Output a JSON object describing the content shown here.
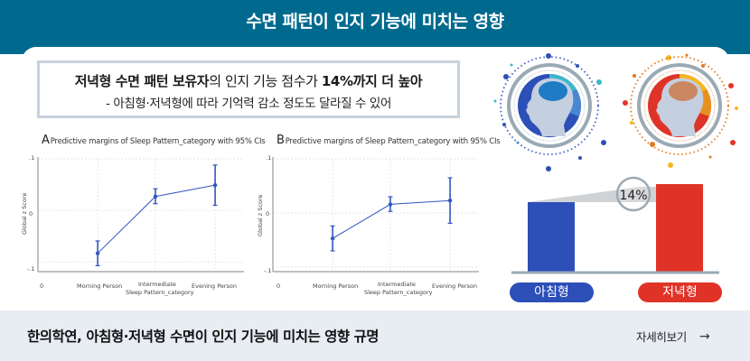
{
  "header": {
    "title": "수면 패턴이 인지 기능에 미치는 영향",
    "bg_color": "#006A8E"
  },
  "quote": {
    "line1_bold_a": "저녁형 수면 패턴 보유자",
    "line1_regular": "의 인지 기능 점수가 ",
    "line1_bold_b": "14%까지 더 높아",
    "line2": "- 아침형·저녁형에 따라 기억력 감소 정도도 달라질 수 있어"
  },
  "chart_data": [
    {
      "type": "line",
      "panel": "A",
      "title": "Predictive margins of Sleep Pattern_category with 95% CIs",
      "xlabel": "Sleep Pattern_category",
      "ylabel": "Global z Score",
      "x_ticks": [
        "0",
        "Morning Person",
        "Intermediate",
        "Evening Person"
      ],
      "y_ticks": [
        ".1",
        "0",
        "-.1"
      ],
      "ylim": [
        -0.115,
        0.1
      ],
      "grid": true,
      "categories": [
        "Morning Person",
        "Intermediate",
        "Evening Person"
      ],
      "values": [
        -0.083,
        0.027,
        0.049
      ],
      "ci_lower": [
        -0.107,
        0.013,
        0.01
      ],
      "ci_upper": [
        -0.059,
        0.042,
        0.088
      ],
      "color": "#3355C0"
    },
    {
      "type": "line",
      "panel": "B",
      "title": "Predictive margins of Sleep Pattern_category with 95% CIs",
      "xlabel": "Sleep Pattern_category",
      "ylabel": "Global z Score",
      "x_ticks": [
        "0",
        "Morning Person",
        "Intermediate",
        "Evening Person"
      ],
      "y_ticks": [
        ".1",
        "0",
        "-.1"
      ],
      "ylim": [
        -0.105,
        0.1
      ],
      "grid": true,
      "categories": [
        "Morning Person",
        "Intermediate",
        "Evening Person"
      ],
      "values": [
        -0.047,
        0.016,
        0.023
      ],
      "ci_lower": [
        -0.07,
        0.003,
        -0.019
      ],
      "ci_upper": [
        -0.024,
        0.03,
        0.065
      ],
      "color": "#3355C0"
    }
  ],
  "comparison": {
    "morning_label": "아침형",
    "evening_label": "저녁형",
    "difference_label": "14%",
    "morning_color": "#2D4FB8",
    "evening_color": "#E03328"
  },
  "footer": {
    "title": "한의학연, 아침형·저녁형 수면이 인지 기능에 미치는 영향 규명",
    "link_label": "자세히보기",
    "link_arrow": "→"
  }
}
